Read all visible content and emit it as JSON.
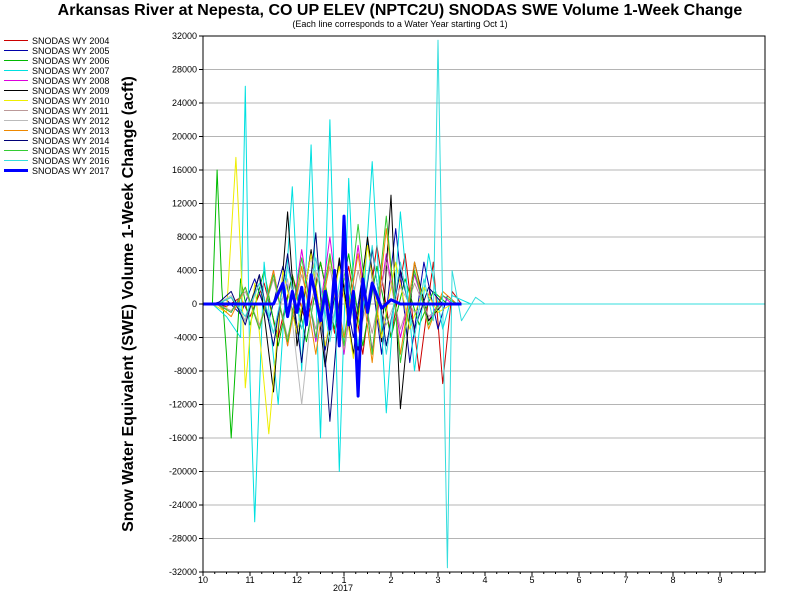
{
  "chart_data": {
    "type": "line",
    "title": "Arkansas River at Nepesta, CO UP ELEV (NPTC2U) SNODAS SWE Volume 1-Week Change",
    "subtitle": "(Each line corresponds to a Water Year starting Oct 1)",
    "ylabel": "Snow Water Equivalent (SWE) Volume 1-Week Change (acft)",
    "xlabel": "",
    "year_label": "2017",
    "ylim": [
      -32000,
      32000
    ],
    "yticks": [
      32000,
      28000,
      24000,
      20000,
      16000,
      12000,
      8000,
      4000,
      0,
      -4000,
      -8000,
      -12000,
      -16000,
      -20000,
      -24000,
      -28000,
      -32000
    ],
    "xticks": [
      "10",
      "11",
      "12",
      "1",
      "2",
      "3",
      "4",
      "5",
      "6",
      "7",
      "8",
      "9"
    ],
    "grid": true,
    "legend_position": "top-left outside",
    "series": [
      {
        "name": "SNODAS WY 2004",
        "color": "#cc0000",
        "bold": false,
        "x": [
          0.2,
          0.5,
          0.8,
          1.0,
          1.3,
          1.6,
          1.9,
          2.2,
          2.5,
          2.8,
          3.1,
          3.4,
          3.7,
          4.0,
          4.3,
          4.6,
          4.9,
          5.1,
          5.3,
          5.5
        ],
        "y": [
          0,
          -300,
          800,
          -1500,
          2500,
          -4000,
          3500,
          -2500,
          5000,
          -3500,
          4500,
          -6000,
          7000,
          -4000,
          6000,
          -8000,
          5000,
          -9500,
          1500,
          0
        ]
      },
      {
        "name": "SNODAS WY 2005",
        "color": "#0000aa",
        "bold": false,
        "x": [
          0.2,
          0.5,
          0.8,
          1.1,
          1.4,
          1.7,
          2.0,
          2.3,
          2.6,
          2.9,
          3.2,
          3.5,
          3.8,
          4.1,
          4.4,
          4.7,
          5.0,
          5.2,
          5.4
        ],
        "y": [
          0,
          500,
          -1200,
          3000,
          -2000,
          4500,
          -3500,
          6000,
          -5500,
          5000,
          -4000,
          7500,
          -6000,
          9000,
          -7000,
          5000,
          -3000,
          1000,
          0
        ]
      },
      {
        "name": "SNODAS WY 2006",
        "color": "#00bb00",
        "bold": false,
        "x": [
          0.2,
          0.3,
          0.4,
          0.5,
          0.6,
          0.8,
          1.0,
          1.3,
          1.6,
          1.9,
          2.2,
          2.5,
          2.8,
          3.1,
          3.4,
          3.7,
          4.0,
          4.3,
          4.6,
          4.9,
          5.2
        ],
        "y": [
          0,
          16000,
          2000,
          -6000,
          -16000,
          3000,
          -2500,
          4000,
          -5000,
          3500,
          -4500,
          5000,
          -3000,
          6000,
          -5000,
          4500,
          -4000,
          3000,
          -2500,
          1500,
          0
        ]
      },
      {
        "name": "SNODAS WY 2007",
        "color": "#00e0e0",
        "bold": false,
        "x": [
          0.2,
          0.5,
          0.8,
          0.9,
          1.0,
          1.1,
          1.3,
          1.6,
          1.9,
          2.1,
          2.3,
          2.5,
          2.7,
          2.9,
          3.1,
          3.3,
          3.6,
          3.9,
          4.2,
          4.5,
          4.8,
          5.1,
          5.3,
          5.5,
          5.7
        ],
        "y": [
          0,
          -1500,
          -4000,
          26000,
          -9000,
          -26000,
          5000,
          -12000,
          14000,
          -8000,
          19000,
          -16000,
          22000,
          -20000,
          15000,
          -10000,
          17000,
          -13000,
          11000,
          -8000,
          6000,
          -3000,
          1000,
          500,
          0
        ]
      },
      {
        "name": "SNODAS WY 2008",
        "color": "#dd00dd",
        "bold": false,
        "x": [
          0.3,
          0.6,
          0.9,
          1.2,
          1.5,
          1.8,
          2.1,
          2.4,
          2.7,
          3.0,
          3.3,
          3.6,
          3.9,
          4.2,
          4.5,
          4.8,
          5.1,
          5.3
        ],
        "y": [
          0,
          -1000,
          2000,
          -3000,
          4000,
          -5000,
          6500,
          -4500,
          8000,
          -6000,
          7000,
          -5500,
          6000,
          -4000,
          3500,
          -2000,
          1000,
          0
        ]
      },
      {
        "name": "SNODAS WY 2009",
        "color": "#000000",
        "bold": false,
        "x": [
          0.3,
          0.6,
          0.9,
          1.2,
          1.5,
          1.8,
          2.0,
          2.3,
          2.6,
          2.9,
          3.2,
          3.5,
          3.8,
          4.0,
          4.2,
          4.5,
          4.8,
          5.1
        ],
        "y": [
          0,
          800,
          -2000,
          3500,
          -10500,
          11000,
          -5000,
          6500,
          -7500,
          5500,
          -6000,
          8000,
          -4500,
          13000,
          -12500,
          5000,
          -2000,
          0
        ]
      },
      {
        "name": "SNODAS WY 2010",
        "color": "#eeee00",
        "bold": false,
        "x": [
          0.2,
          0.5,
          0.7,
          0.8,
          0.9,
          1.1,
          1.4,
          1.7,
          2.0,
          2.3,
          2.6,
          2.9,
          3.2,
          3.5,
          3.8,
          4.1,
          4.4,
          4.7,
          5.0,
          5.3
        ],
        "y": [
          0,
          -1000,
          17500,
          6000,
          -10000,
          2500,
          -15500,
          4000,
          -3500,
          6000,
          -5000,
          4500,
          -6500,
          7000,
          -4000,
          5000,
          -3000,
          2000,
          -1000,
          0
        ]
      },
      {
        "name": "SNODAS WY 2011",
        "color": "#bb9999",
        "bold": false,
        "x": [
          0.3,
          0.6,
          0.9,
          1.2,
          1.5,
          1.8,
          2.1,
          2.4,
          2.7,
          3.0,
          3.3,
          3.6,
          3.9,
          4.2,
          4.5,
          4.8,
          5.1
        ],
        "y": [
          0,
          -800,
          1500,
          -2500,
          3000,
          -4000,
          3500,
          -3000,
          4500,
          -5500,
          4000,
          -3500,
          5000,
          -3000,
          2500,
          -1500,
          0
        ]
      },
      {
        "name": "SNODAS WY 2012",
        "color": "#bbbbbb",
        "bold": false,
        "x": [
          0.3,
          0.6,
          0.9,
          1.2,
          1.5,
          1.8,
          2.1,
          2.4,
          2.7,
          3.0,
          3.3,
          3.6,
          3.9,
          4.2,
          4.5,
          4.8
        ],
        "y": [
          0,
          1000,
          -2000,
          2500,
          -3500,
          3000,
          -12000,
          4000,
          -3000,
          3500,
          -4500,
          3000,
          -2500,
          2000,
          -1000,
          0
        ]
      },
      {
        "name": "SNODAS WY 2013",
        "color": "#ee8800",
        "bold": false,
        "x": [
          0.3,
          0.6,
          0.9,
          1.2,
          1.5,
          1.8,
          2.1,
          2.4,
          2.7,
          3.0,
          3.3,
          3.6,
          3.9,
          4.2,
          4.5,
          4.8,
          5.1,
          5.4
        ],
        "y": [
          0,
          -1500,
          2000,
          -3000,
          4000,
          -5000,
          4500,
          -6000,
          5500,
          -4000,
          6000,
          -7000,
          9000,
          -6000,
          5000,
          -3000,
          1500,
          0
        ]
      },
      {
        "name": "SNODAS WY 2014",
        "color": "#000077",
        "bold": false,
        "x": [
          0.3,
          0.6,
          0.9,
          1.2,
          1.5,
          1.8,
          2.1,
          2.4,
          2.7,
          3.0,
          3.3,
          3.6,
          3.9,
          4.2,
          4.5,
          4.8,
          5.1
        ],
        "y": [
          0,
          1500,
          -2500,
          3500,
          -5000,
          6000,
          -7000,
          8500,
          -14000,
          7000,
          -5500,
          6500,
          -5000,
          4000,
          -3000,
          2000,
          0
        ]
      },
      {
        "name": "SNODAS WY 2015",
        "color": "#33cc33",
        "bold": false,
        "x": [
          0.3,
          0.6,
          0.9,
          1.2,
          1.5,
          1.8,
          2.1,
          2.4,
          2.7,
          3.0,
          3.3,
          3.6,
          3.9,
          4.2,
          4.5,
          4.8,
          5.1,
          5.4
        ],
        "y": [
          0,
          -1000,
          2000,
          -3000,
          3500,
          -4500,
          5500,
          -4000,
          6000,
          -5000,
          9500,
          -6000,
          10500,
          -7000,
          4000,
          -2500,
          1000,
          0
        ]
      },
      {
        "name": "SNODAS WY 2016",
        "color": "#33dddd",
        "bold": false,
        "x": [
          0.3,
          0.6,
          0.9,
          1.2,
          1.5,
          1.8,
          2.1,
          2.4,
          2.7,
          3.0,
          3.3,
          3.6,
          3.9,
          4.2,
          4.5,
          4.7,
          4.9,
          5.0,
          5.2,
          5.3,
          5.5,
          5.8,
          6.0
        ],
        "y": [
          0,
          800,
          -1500,
          2500,
          -3500,
          4500,
          -3000,
          5500,
          -4500,
          6000,
          -5000,
          7000,
          -6000,
          5000,
          -4000,
          3000,
          -2000,
          31500,
          -31500,
          4000,
          -2000,
          800,
          0
        ]
      },
      {
        "name": "SNODAS WY 2017",
        "color": "#0000ff",
        "bold": true,
        "x": [
          0.0,
          1.5,
          1.7,
          1.8,
          1.9,
          2.0,
          2.1,
          2.2,
          2.3,
          2.5,
          2.6,
          2.7,
          2.8,
          2.9,
          3.0,
          3.1,
          3.2,
          3.3,
          3.4,
          3.5,
          3.6,
          3.8,
          4.0,
          4.2,
          4.5,
          5.0,
          5.5
        ],
        "y": [
          0,
          0,
          2500,
          -1500,
          1500,
          -1000,
          2000,
          -2500,
          3500,
          -2000,
          1500,
          -3000,
          4000,
          -5000,
          10500,
          -2500,
          1500,
          -11000,
          3000,
          -1000,
          2500,
          -500,
          500,
          0,
          0,
          0,
          0
        ]
      }
    ]
  }
}
